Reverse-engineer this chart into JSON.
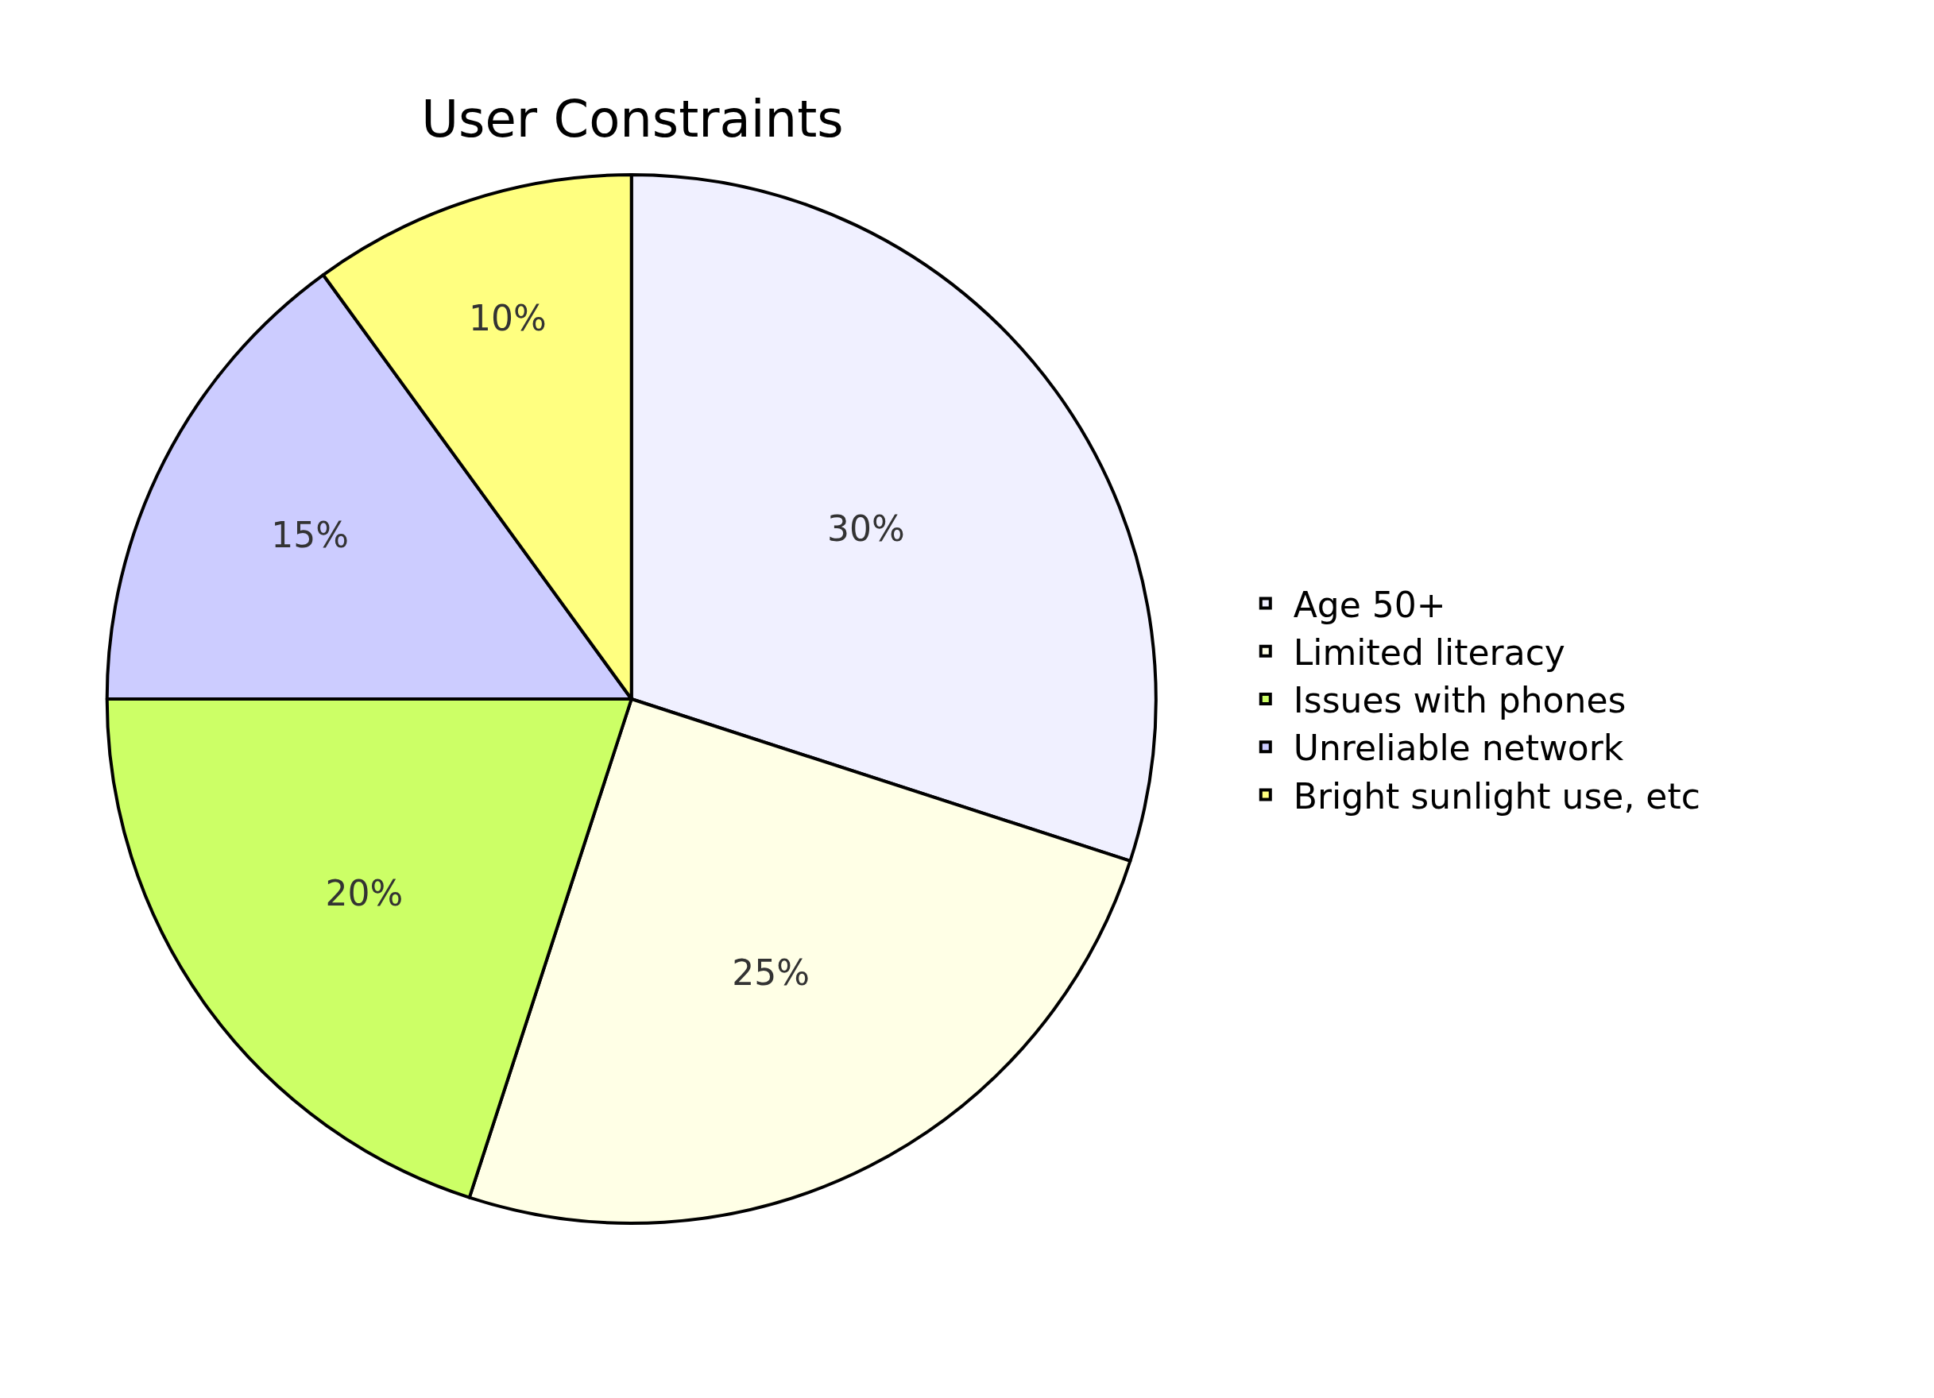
{
  "chart_data": {
    "type": "pie",
    "title": "User Constraints",
    "categories": [
      "Age 50+",
      "Limited literacy",
      "Issues with phones",
      "Unreliable network",
      "Bright sunlight use, etc"
    ],
    "values": [
      30,
      25,
      20,
      15,
      10
    ],
    "colors": [
      "#f0f0ff",
      "#ffffe6",
      "#ccff66",
      "#ccccff",
      "#ffff80"
    ],
    "value_labels": [
      "30%",
      "25%",
      "20%",
      "15%",
      "10%"
    ],
    "legend": "right"
  }
}
